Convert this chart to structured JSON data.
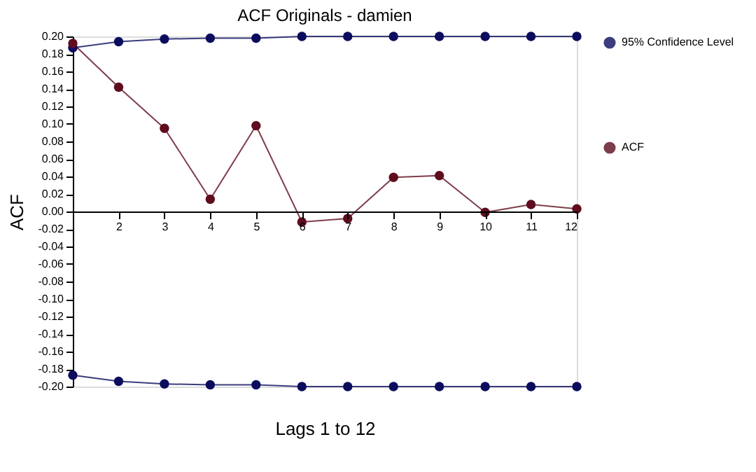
{
  "chart_data": {
    "type": "line",
    "title": "ACF Originals - damien",
    "xlabel": "Lags  1 to 12",
    "ylabel": "ACF",
    "x": [
      1,
      2,
      3,
      4,
      5,
      6,
      7,
      8,
      9,
      10,
      11,
      12
    ],
    "series": [
      {
        "name": "95% Confidence Level",
        "color": "#0c0c5e",
        "values": [
          0.187,
          0.194,
          0.197,
          0.198,
          0.198,
          0.2,
          0.2,
          0.2,
          0.2,
          0.2,
          0.2,
          0.2
        ]
      },
      {
        "color": "#0c0c5e",
        "values": [
          -0.187,
          -0.194,
          -0.197,
          -0.198,
          -0.198,
          -0.2,
          -0.2,
          -0.2,
          -0.2,
          -0.2,
          -0.2,
          -0.2
        ]
      },
      {
        "name": "ACF",
        "color": "#5e0c1e",
        "values": [
          0.192,
          0.142,
          0.095,
          0.014,
          0.098,
          -0.012,
          -0.008,
          0.039,
          0.041,
          -0.001,
          0.008,
          0.003
        ]
      }
    ],
    "xlim": [
      1,
      12
    ],
    "xticks": [
      2,
      3,
      4,
      5,
      6,
      7,
      8,
      9,
      10,
      11,
      12
    ],
    "ylim": [
      -0.2,
      0.2
    ],
    "yticks": [
      {
        "value": -0.2,
        "label": "-0.20"
      },
      {
        "value": -0.18,
        "label": "-0.18"
      },
      {
        "value": -0.16,
        "label": "-0.16"
      },
      {
        "value": -0.14,
        "label": "-0.14"
      },
      {
        "value": -0.12,
        "label": "-0.12"
      },
      {
        "value": -0.1,
        "label": "-0.10"
      },
      {
        "value": -0.08,
        "label": "-0.08"
      },
      {
        "value": -0.06,
        "label": "-0.06"
      },
      {
        "value": -0.04,
        "label": "-0.04"
      },
      {
        "value": -0.02,
        "label": "-0.02"
      },
      {
        "value": 0,
        "label": "0.00"
      },
      {
        "value": 0.02,
        "label": "0.02"
      },
      {
        "value": 0.04,
        "label": "0.04"
      },
      {
        "value": 0.06,
        "label": "0.06"
      },
      {
        "value": 0.08,
        "label": "0.08"
      },
      {
        "value": 0.1,
        "label": "0.10"
      },
      {
        "value": 0.12,
        "label": "0.12"
      },
      {
        "value": 0.14,
        "label": "0.14"
      },
      {
        "value": 0.16,
        "label": "0.16"
      },
      {
        "value": 0.18,
        "label": "0.18"
      },
      {
        "value": 0.2,
        "label": "0.20"
      }
    ],
    "grid": false,
    "legend": "right",
    "marker": "circle",
    "line_style": "solid"
  }
}
